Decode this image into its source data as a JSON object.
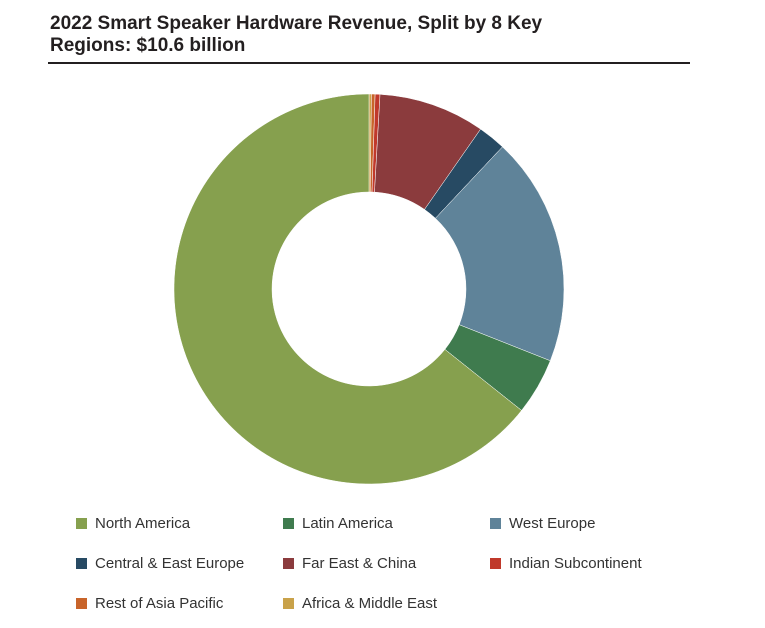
{
  "title_line1": "2022 Smart Speaker Hardware Revenue, Split by 8 Key",
  "title_line2": "Regions: $10.6 billion",
  "chart_data": {
    "type": "pie",
    "style": "donut",
    "title": "2022 Smart Speaker Hardware Revenue, Split by 8 Key Regions: $10.6 billion",
    "unit": "share of revenue (%)",
    "legend_position": "bottom",
    "categories": [
      "North America",
      "Latin America",
      "West Europe",
      "Central & East Europe",
      "Far East & China",
      "Indian Subcontinent",
      "Rest of Asia Pacific",
      "Africa & Middle East"
    ],
    "values": [
      64.3,
      4.7,
      19.0,
      2.3,
      8.8,
      0.4,
      0.3,
      0.2
    ],
    "colors": [
      "#86a04e",
      "#3f7b4e",
      "#5f8399",
      "#274a63",
      "#8b3b3d",
      "#c0392b",
      "#c8642a",
      "#c9a24a"
    ]
  }
}
